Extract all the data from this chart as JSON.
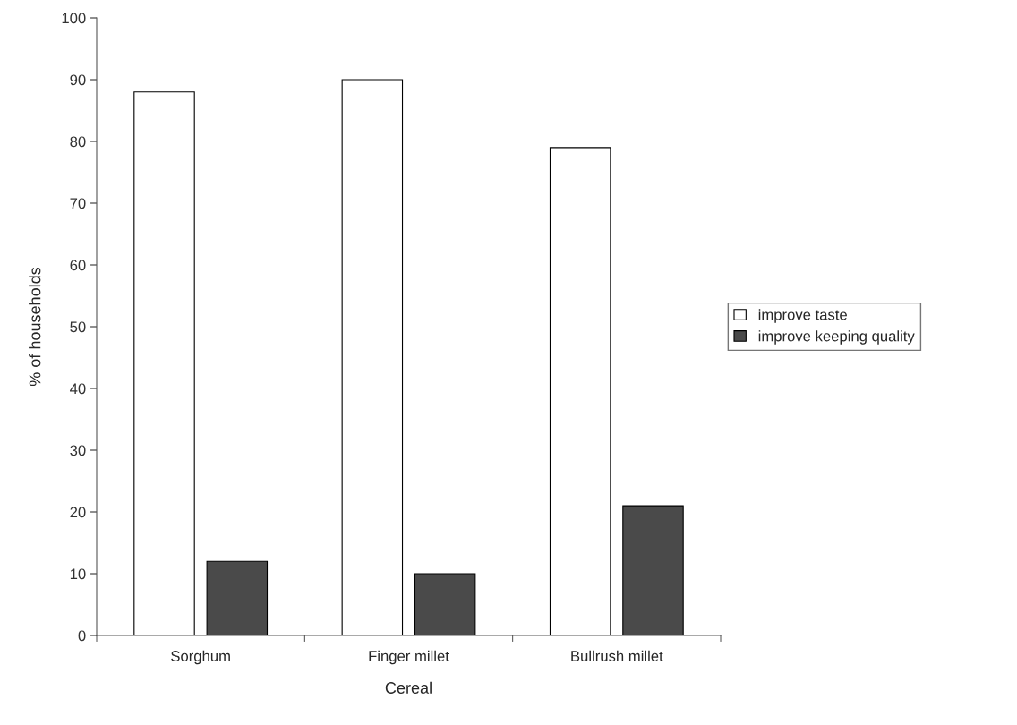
{
  "chart_data": {
    "type": "bar",
    "xlabel": "Cereal",
    "ylabel": "% of households",
    "categories": [
      "Sorghum",
      "Finger millet",
      "Bullrush millet"
    ],
    "series": [
      {
        "name": "improve taste",
        "color": "#ffffff",
        "values": [
          88,
          90,
          79
        ]
      },
      {
        "name": "improve keeping quality",
        "color": "#4a4a4a",
        "values": [
          12,
          10,
          21
        ]
      }
    ],
    "ylim": [
      0,
      100
    ],
    "yticks": [
      0,
      10,
      20,
      30,
      40,
      50,
      60,
      70,
      80,
      90,
      100
    ],
    "grid": false,
    "legend": "right"
  }
}
